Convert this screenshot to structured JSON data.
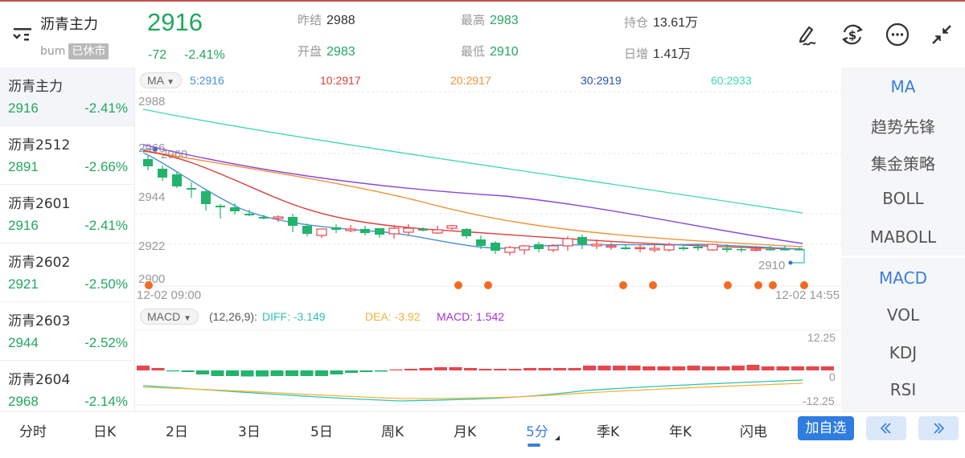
{
  "header": {
    "name": "沥青主力",
    "code": "bum",
    "status_badge": "已休市",
    "price": "2916",
    "change": "-72",
    "change_pct": "-2.41%",
    "stats": [
      {
        "label": "昨结",
        "value": "2988",
        "tone": "dark"
      },
      {
        "label": "开盘",
        "value": "2983",
        "tone": "green"
      },
      {
        "label": "最高",
        "value": "2983",
        "tone": "green"
      },
      {
        "label": "最低",
        "value": "2910",
        "tone": "green"
      },
      {
        "label": "持仓",
        "value": "13.61万",
        "tone": "dark"
      },
      {
        "label": "日增",
        "value": "1.41万",
        "tone": "dark"
      }
    ],
    "icons": [
      "draw-icon",
      "currency-exchange-icon",
      "more-icon",
      "collapse-icon"
    ]
  },
  "sidebar": {
    "items": [
      {
        "name": "沥青主力",
        "price": "2916",
        "pct": "-2.41%",
        "active": true
      },
      {
        "name": "沥青2512",
        "price": "2891",
        "pct": "-2.66%"
      },
      {
        "name": "沥青2601",
        "price": "2916",
        "pct": "-2.41%"
      },
      {
        "name": "沥青2602",
        "price": "2921",
        "pct": "-2.50%"
      },
      {
        "name": "沥青2603",
        "price": "2944",
        "pct": "-2.52%"
      },
      {
        "name": "沥青2604",
        "price": "2968",
        "pct": "-2.14%"
      }
    ]
  },
  "ma": {
    "selector": "MA",
    "values": [
      {
        "label": "5:2916",
        "color": "#4a90d9"
      },
      {
        "label": "10:2917",
        "color": "#d9403a"
      },
      {
        "label": "20:2917",
        "color": "#f0923a"
      },
      {
        "label": "30:2919",
        "color": "#2c4fb8"
      },
      {
        "label": "60:2933",
        "color": "#3dd6b5"
      }
    ]
  },
  "macd": {
    "selector": "MACD",
    "params": "(12,26,9):",
    "diff": "DIFF: -3.149",
    "dea": "DEA: -3.92",
    "macd": "MACD: 1.542",
    "diff_color": "#2ec4b0",
    "dea_color": "#f0b43a",
    "macd_color": "#a033d8"
  },
  "chart_labels": {
    "y_ticks": [
      "2988",
      "2966",
      "2944",
      "2922",
      "2900"
    ],
    "start_time": "12-02 09:00",
    "end_time": "12-02 14:55",
    "high_marker": "2960",
    "low_marker": "2910",
    "macd_ticks": [
      "12.25",
      "0",
      "-12.25"
    ]
  },
  "right_panel": {
    "main_indicators": [
      "MA",
      "趋势先锋",
      "集金策略",
      "BOLL",
      "MABOLL"
    ],
    "sub_indicators": [
      "MACD",
      "VOL",
      "KDJ",
      "RSI"
    ],
    "active_main": "MA",
    "active_sub": "MACD"
  },
  "bottom_tabs": {
    "tabs": [
      "分时",
      "日K",
      "2日",
      "3日",
      "5日",
      "周K",
      "月K",
      "5分",
      "季K",
      "年K",
      "闪电"
    ],
    "active": "5分",
    "add_button": "加自选",
    "prev": "«",
    "next": "»"
  },
  "colors": {
    "up": "#e5474b",
    "down": "#22b36c",
    "accent": "#3b7ddd"
  }
}
